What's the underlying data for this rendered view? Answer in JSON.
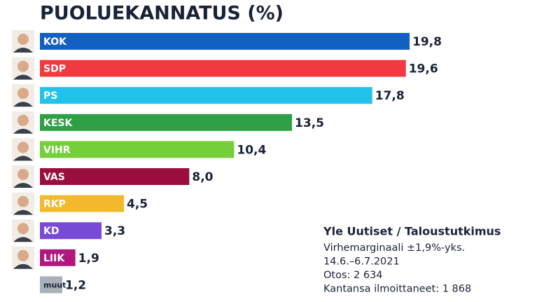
{
  "chart_data": {
    "type": "bar",
    "orientation": "horizontal",
    "title": "PUOLUEKANNATUS (%)",
    "categories": [
      "KOK",
      "SDP",
      "PS",
      "KESK",
      "VIHR",
      "VAS",
      "RKP",
      "KD",
      "LIIK",
      "muut"
    ],
    "values": [
      19.8,
      19.6,
      17.8,
      13.5,
      10.4,
      8.0,
      4.5,
      3.3,
      1.9,
      1.2
    ],
    "value_labels": [
      "19,8",
      "19,6",
      "17,8",
      "13,5",
      "10,4",
      "8,0",
      "4,5",
      "3,3",
      "1,9",
      "1,2"
    ],
    "colors": [
      "#1160c2",
      "#f2393f",
      "#22c3ea",
      "#2e9f44",
      "#74cf3b",
      "#9a0d3d",
      "#f3b82b",
      "#7b49d8",
      "#b0187e",
      "#a8b0b8"
    ]
  },
  "source": {
    "title": "Yle Uutiset / Taloustutkimus",
    "lines": [
      "Virhemarginaali ±1,9%-yks.",
      "14.6.–6.7.2021",
      "Otos: 2 634",
      "Kantansa ilmoittaneet: 1 868"
    ]
  }
}
